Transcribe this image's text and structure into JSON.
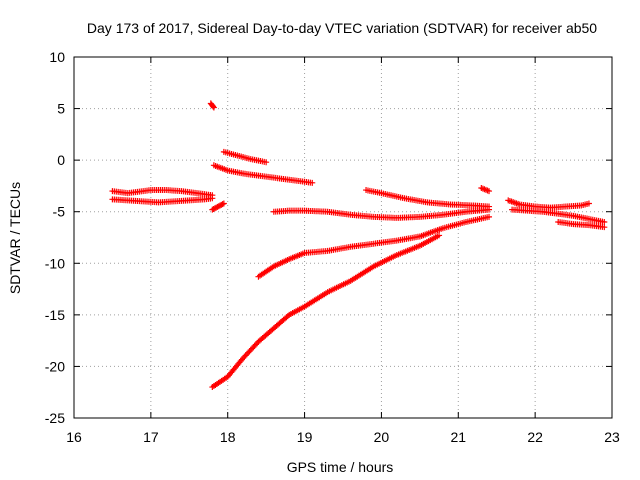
{
  "chart_data": {
    "type": "scatter",
    "title": "Day 173 of 2017, Sidereal Day-to-day VTEC variation (SDTVAR) for receiver ab50",
    "xlabel": "GPS time / hours",
    "ylabel": "SDTVAR / TECUs",
    "xlim": [
      16,
      23
    ],
    "ylim": [
      -25,
      10
    ],
    "xticks": [
      "16",
      "17",
      "18",
      "19",
      "20",
      "21",
      "22",
      "23"
    ],
    "yticks": [
      "10",
      "5",
      "0",
      "-5",
      "-10",
      "-15",
      "-20",
      "-25"
    ],
    "grid": true,
    "marker": "plus",
    "color": "#ff0000",
    "series": [
      {
        "x": [
          16.5,
          16.7,
          16.9,
          17.0,
          17.2,
          17.4,
          17.6,
          17.8
        ],
        "y": [
          -3.0,
          -3.2,
          -3.0,
          -2.9,
          -2.9,
          -3.0,
          -3.2,
          -3.4
        ]
      },
      {
        "x": [
          16.5,
          16.7,
          16.9,
          17.1,
          17.3,
          17.5,
          17.7,
          17.8
        ],
        "y": [
          -3.8,
          -3.9,
          -4.0,
          -4.1,
          -4.0,
          -3.9,
          -3.8,
          -3.7
        ]
      },
      {
        "x": [
          17.78,
          17.8,
          17.82
        ],
        "y": [
          5.5,
          5.3,
          5.1
        ]
      },
      {
        "x": [
          17.8,
          17.85,
          17.9,
          17.95
        ],
        "y": [
          -4.8,
          -4.6,
          -4.4,
          -4.2
        ]
      },
      {
        "x": [
          17.82,
          18.0,
          18.2,
          18.4,
          18.6,
          18.8,
          19.0,
          19.1
        ],
        "y": [
          -0.5,
          -1.0,
          -1.3,
          -1.5,
          -1.7,
          -1.9,
          -2.1,
          -2.2
        ]
      },
      {
        "x": [
          17.95,
          18.1,
          18.3,
          18.5
        ],
        "y": [
          0.8,
          0.5,
          0.1,
          -0.2
        ]
      },
      {
        "x": [
          18.6,
          18.8,
          19.0,
          19.3,
          19.6,
          19.9,
          20.2,
          20.5,
          20.8,
          21.1,
          21.4
        ],
        "y": [
          -5.0,
          -4.9,
          -4.9,
          -5.0,
          -5.3,
          -5.5,
          -5.6,
          -5.5,
          -5.3,
          -5.0,
          -4.8
        ]
      },
      {
        "x": [
          18.4,
          18.6,
          18.8,
          19.0,
          19.3,
          19.6,
          19.9,
          20.2,
          20.5,
          20.8,
          21.1,
          21.4
        ],
        "y": [
          -11.3,
          -10.3,
          -9.6,
          -9.0,
          -8.8,
          -8.4,
          -8.1,
          -7.8,
          -7.4,
          -6.6,
          -6.0,
          -5.5
        ]
      },
      {
        "x": [
          17.8,
          18.0,
          18.2,
          18.4,
          18.6,
          18.8,
          19.0,
          19.3,
          19.6,
          19.9,
          20.2,
          20.5,
          20.75
        ],
        "y": [
          -22.0,
          -21.0,
          -19.2,
          -17.6,
          -16.3,
          -15.0,
          -14.2,
          -12.8,
          -11.7,
          -10.3,
          -9.2,
          -8.3,
          -7.3
        ]
      },
      {
        "x": [
          19.8,
          20.0,
          20.3,
          20.6,
          20.9,
          21.2,
          21.4
        ],
        "y": [
          -2.9,
          -3.2,
          -3.7,
          -4.1,
          -4.3,
          -4.4,
          -4.5
        ]
      },
      {
        "x": [
          21.3,
          21.4
        ],
        "y": [
          -2.7,
          -3.0
        ]
      },
      {
        "x": [
          21.65,
          21.8,
          22.0,
          22.2,
          22.4,
          22.6,
          22.7
        ],
        "y": [
          -3.9,
          -4.3,
          -4.5,
          -4.6,
          -4.5,
          -4.4,
          -4.2
        ]
      },
      {
        "x": [
          21.7,
          21.9,
          22.1,
          22.3,
          22.5,
          22.7,
          22.9
        ],
        "y": [
          -4.8,
          -4.9,
          -5.0,
          -5.2,
          -5.4,
          -5.7,
          -6.0
        ]
      },
      {
        "x": [
          22.3,
          22.5,
          22.7,
          22.9
        ],
        "y": [
          -6.0,
          -6.2,
          -6.3,
          -6.5
        ]
      }
    ]
  }
}
